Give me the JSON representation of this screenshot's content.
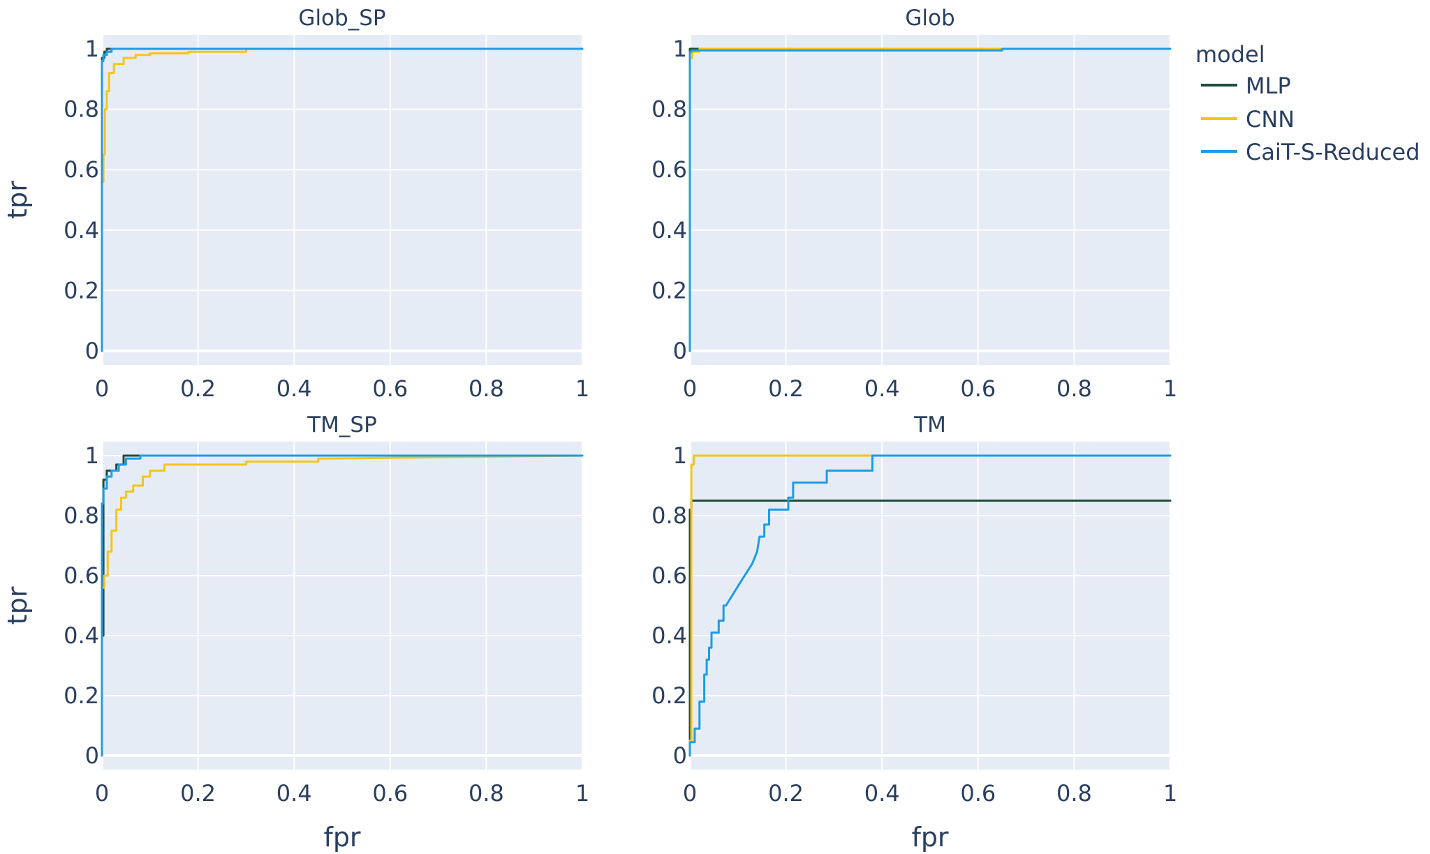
{
  "legend": {
    "title": "model",
    "items": [
      {
        "name": "MLP",
        "color": "#1f4e3d"
      },
      {
        "name": "CNN",
        "color": "#f5c518"
      },
      {
        "name": "CaiT-S-Reduced",
        "color": "#1e9be6"
      }
    ]
  },
  "chart_data": [
    {
      "type": "line",
      "title": "Glob_SP",
      "xlabel": "",
      "ylabel": "tpr",
      "xlim": [
        0,
        1
      ],
      "ylim": [
        0,
        1
      ],
      "xticks": [
        "0",
        "0.2",
        "0.4",
        "0.6",
        "0.8",
        "1"
      ],
      "yticks": [
        "0",
        "0.2",
        "0.4",
        "0.6",
        "0.8",
        "1"
      ],
      "grid": true,
      "series": [
        {
          "name": "MLP",
          "color": "#1f4e3d",
          "x": [
            0,
            0,
            0.005,
            0.005,
            0.01,
            0.01,
            0.04,
            1
          ],
          "y": [
            0,
            0.97,
            0.97,
            0.99,
            0.99,
            1,
            1,
            1
          ]
        },
        {
          "name": "CNN",
          "color": "#f5c518",
          "x": [
            0,
            0,
            0.003,
            0.003,
            0.006,
            0.006,
            0.01,
            0.01,
            0.015,
            0.015,
            0.025,
            0.025,
            0.045,
            0.045,
            0.07,
            0.07,
            0.1,
            0.1,
            0.18,
            0.18,
            0.3,
            0.3,
            1
          ],
          "y": [
            0,
            0.56,
            0.56,
            0.65,
            0.65,
            0.8,
            0.8,
            0.86,
            0.86,
            0.92,
            0.92,
            0.95,
            0.95,
            0.97,
            0.97,
            0.98,
            0.98,
            0.985,
            0.985,
            0.99,
            0.99,
            1,
            1
          ]
        },
        {
          "name": "CaiT-S-Reduced",
          "color": "#1e9be6",
          "x": [
            0,
            0,
            0.003,
            0.003,
            0.01,
            0.01,
            0.02,
            0.02,
            1
          ],
          "y": [
            0,
            0.96,
            0.96,
            0.98,
            0.98,
            0.99,
            0.99,
            1,
            1
          ]
        }
      ]
    },
    {
      "type": "line",
      "title": "Glob",
      "xlabel": "",
      "ylabel": "",
      "xlim": [
        0,
        1
      ],
      "ylim": [
        0,
        1
      ],
      "xticks": [
        "0",
        "0.2",
        "0.4",
        "0.6",
        "0.8",
        "1"
      ],
      "yticks": [
        "0",
        "0.2",
        "0.4",
        "0.6",
        "0.8",
        "1"
      ],
      "grid": true,
      "series": [
        {
          "name": "MLP",
          "color": "#1f4e3d",
          "x": [
            0,
            0,
            0.14,
            0.14,
            1
          ],
          "y": [
            0,
            1,
            1,
            1,
            1
          ]
        },
        {
          "name": "CNN",
          "color": "#f5c518",
          "x": [
            0,
            0,
            0.005,
            0.005,
            0.02,
            0.02,
            0.65,
            0.65,
            1
          ],
          "y": [
            0,
            0.97,
            0.97,
            0.99,
            0.99,
            1,
            1,
            1,
            1
          ]
        },
        {
          "name": "CaiT-S-Reduced",
          "color": "#1e9be6",
          "x": [
            0,
            0,
            0.003,
            0.003,
            0.65,
            0.65,
            1
          ],
          "y": [
            0,
            0.99,
            0.99,
            0.995,
            0.995,
            1,
            1
          ]
        }
      ]
    },
    {
      "type": "line",
      "title": "TM_SP",
      "xlabel": "fpr",
      "ylabel": "tpr",
      "xlim": [
        0,
        1
      ],
      "ylim": [
        0,
        1
      ],
      "xticks": [
        "0",
        "0.2",
        "0.4",
        "0.6",
        "0.8",
        "1"
      ],
      "yticks": [
        "0",
        "0.2",
        "0.4",
        "0.6",
        "0.8",
        "1"
      ],
      "grid": true,
      "series": [
        {
          "name": "MLP",
          "color": "#1f4e3d",
          "x": [
            0,
            0,
            0.003,
            0.003,
            0.01,
            0.01,
            0.03,
            0.03,
            0.045,
            0.045,
            0.08,
            0.08,
            1
          ],
          "y": [
            0,
            0.4,
            0.4,
            0.92,
            0.92,
            0.95,
            0.95,
            0.97,
            0.97,
            1,
            1,
            1,
            1
          ]
        },
        {
          "name": "CNN",
          "color": "#f5c518",
          "x": [
            0,
            0,
            0.005,
            0.005,
            0.012,
            0.012,
            0.02,
            0.02,
            0.03,
            0.03,
            0.04,
            0.04,
            0.05,
            0.05,
            0.065,
            0.065,
            0.085,
            0.085,
            0.1,
            0.1,
            0.13,
            0.13,
            0.3,
            0.3,
            0.45,
            0.45,
            1
          ],
          "y": [
            0,
            0.56,
            0.56,
            0.6,
            0.6,
            0.68,
            0.68,
            0.75,
            0.75,
            0.82,
            0.82,
            0.86,
            0.86,
            0.88,
            0.88,
            0.9,
            0.9,
            0.93,
            0.93,
            0.95,
            0.95,
            0.97,
            0.97,
            0.98,
            0.98,
            0.99,
            1
          ]
        },
        {
          "name": "CaiT-S-Reduced",
          "color": "#1e9be6",
          "x": [
            0,
            0,
            0.003,
            0.003,
            0.01,
            0.01,
            0.02,
            0.02,
            0.035,
            0.035,
            0.05,
            0.05,
            0.08,
            0.08,
            1
          ],
          "y": [
            0,
            0.84,
            0.84,
            0.89,
            0.89,
            0.93,
            0.93,
            0.95,
            0.95,
            0.97,
            0.97,
            0.99,
            0.99,
            1,
            1
          ]
        }
      ]
    },
    {
      "type": "line",
      "title": "TM",
      "xlabel": "fpr",
      "ylabel": "",
      "xlim": [
        0,
        1
      ],
      "ylim": [
        0,
        1
      ],
      "xticks": [
        "0",
        "0.2",
        "0.4",
        "0.6",
        "0.8",
        "1"
      ],
      "yticks": [
        "0",
        "0.2",
        "0.4",
        "0.6",
        "0.8",
        "1"
      ],
      "grid": true,
      "series": [
        {
          "name": "MLP",
          "color": "#1f4e3d",
          "x": [
            0,
            0,
            0.003,
            0.003,
            1
          ],
          "y": [
            0,
            0.82,
            0.82,
            0.85,
            0.85
          ]
        },
        {
          "name": "CNN",
          "color": "#f5c518",
          "x": [
            0,
            0,
            0.003,
            0.003,
            0.008,
            0.008,
            0.62,
            0.62,
            1
          ],
          "y": [
            0,
            0.05,
            0.05,
            0.97,
            0.97,
            1,
            1,
            1,
            1
          ]
        },
        {
          "name": "CaiT-S-Reduced",
          "color": "#1e9be6",
          "x": [
            0,
            0,
            0.01,
            0.01,
            0.02,
            0.02,
            0.03,
            0.03,
            0.035,
            0.035,
            0.04,
            0.04,
            0.045,
            0.045,
            0.05,
            0.05,
            0.06,
            0.06,
            0.07,
            0.07,
            0.075,
            0.075,
            0.11,
            0.11,
            0.13,
            0.13,
            0.14,
            0.14,
            0.145,
            0.145,
            0.155,
            0.155,
            0.165,
            0.165,
            0.205,
            0.205,
            0.215,
            0.215,
            0.285,
            0.285,
            0.38,
            0.38,
            0.61,
            0.61,
            1
          ],
          "y": [
            0,
            0.045,
            0.045,
            0.09,
            0.09,
            0.18,
            0.18,
            0.27,
            0.27,
            0.32,
            0.32,
            0.36,
            0.36,
            0.41,
            0.41,
            0.41,
            0.41,
            0.45,
            0.45,
            0.5,
            0.5,
            0.5,
            0.59,
            0.59,
            0.64,
            0.64,
            0.68,
            0.68,
            0.73,
            0.73,
            0.73,
            0.77,
            0.77,
            0.82,
            0.82,
            0.86,
            0.86,
            0.91,
            0.91,
            0.95,
            0.95,
            1,
            1,
            1,
            1
          ]
        }
      ]
    }
  ]
}
